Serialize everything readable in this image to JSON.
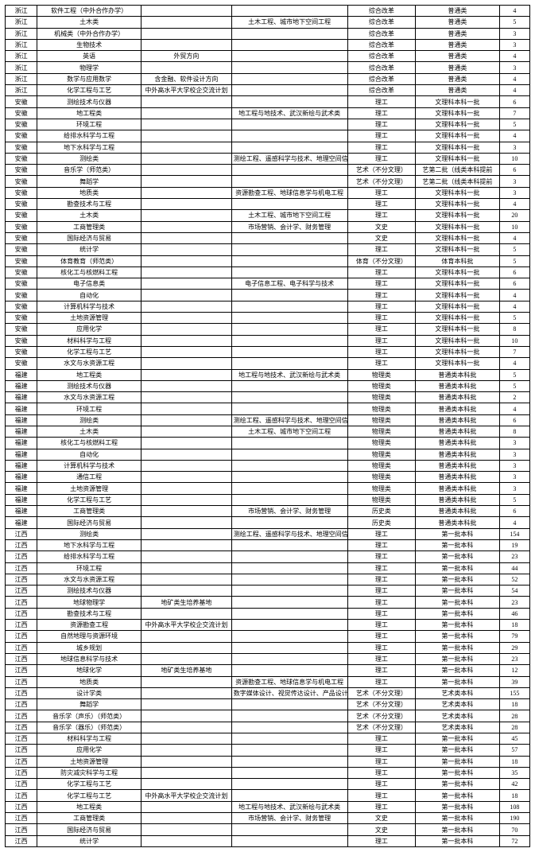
{
  "table": {
    "colClasses": [
      "c0",
      "c1",
      "c2",
      "c3",
      "c4",
      "c5",
      "c6"
    ],
    "rows": [
      [
        "浙江",
        "软件工程（中外合作办学）",
        "",
        "",
        "综合改革",
        "普通类",
        "4"
      ],
      [
        "浙江",
        "土木类",
        "",
        "土木工程、城市地下空间工程",
        "综合改革",
        "普通类",
        "5"
      ],
      [
        "浙江",
        "机械类（中外合作办学）",
        "",
        "",
        "综合改革",
        "普通类",
        "3"
      ],
      [
        "浙江",
        "生物技术",
        "",
        "",
        "综合改革",
        "普通类",
        "3"
      ],
      [
        "浙江",
        "英语",
        "外贸方向",
        "",
        "综合改革",
        "普通类",
        "4"
      ],
      [
        "浙江",
        "物理学",
        "",
        "",
        "综合改革",
        "普通类",
        "3"
      ],
      [
        "浙江",
        "数学与应用数学",
        "含金融、软件设计方向",
        "",
        "综合改革",
        "普通类",
        "4"
      ],
      [
        "浙江",
        "化学工程与工艺",
        "中外高水平大学校企交流计划",
        "",
        "综合改革",
        "普通类",
        "4"
      ],
      [
        "安徽",
        "测绘技术与仪器",
        "",
        "",
        "理工",
        "文理科本科一批",
        "6"
      ],
      [
        "安徽",
        "地工程类",
        "",
        "地工程与地技术、武汉新绘与武术类",
        "理工",
        "文理科本科一批",
        "7"
      ],
      [
        "安徽",
        "环境工程",
        "",
        "",
        "理工",
        "文理科本科一批",
        "5"
      ],
      [
        "安徽",
        "给排水科学与工程",
        "",
        "",
        "理工",
        "文理科本科一批",
        "4"
      ],
      [
        "安徽",
        "地下水科学与工程",
        "",
        "",
        "理工",
        "文理科本科一批",
        "3"
      ],
      [
        "安徽",
        "测绘类",
        "",
        "测绘工程、遥感科学与技术、地理空间信息工程",
        "理工",
        "文理科本科一批",
        "10"
      ],
      [
        "安徽",
        "音乐学（师范类）",
        "",
        "",
        "艺术（不分文理）",
        "艺第二批（线类本科提前",
        "6"
      ],
      [
        "安徽",
        "舞蹈学",
        "",
        "",
        "艺术（不分文理）",
        "艺第二批（线类本科提前",
        "3"
      ],
      [
        "安徽",
        "地质类",
        "",
        "资源勘查工程、地球信息学与机电工程",
        "理工",
        "文理科本科一批",
        "3"
      ],
      [
        "安徽",
        "勘查技术与工程",
        "",
        "",
        "理工",
        "文理科本科一批",
        "4"
      ],
      [
        "安徽",
        "土木类",
        "",
        "土木工程、城市地下空间工程",
        "理工",
        "文理科本科一批",
        "20"
      ],
      [
        "安徽",
        "工商管理类",
        "",
        "市场营销、会计学、财务管理",
        "文史",
        "文理科本科一批",
        "10"
      ],
      [
        "安徽",
        "国际经济与贸易",
        "",
        "",
        "文史",
        "文理科本科一批",
        "4"
      ],
      [
        "安徽",
        "统计学",
        "",
        "",
        "理工",
        "文理科本科一批",
        "5"
      ],
      [
        "安徽",
        "体育教育（师范类）",
        "",
        "",
        "体育（不分文理）",
        "体育本科批",
        "5"
      ],
      [
        "安徽",
        "核化工与核燃料工程",
        "",
        "",
        "理工",
        "文理科本科一批",
        "6"
      ],
      [
        "安徽",
        "电子信息类",
        "",
        "电子信息工程、电子科学与技术",
        "理工",
        "文理科本科一批",
        "6"
      ],
      [
        "安徽",
        "自动化",
        "",
        "",
        "理工",
        "文理科本科一批",
        "4"
      ],
      [
        "安徽",
        "计算机科学与技术",
        "",
        "",
        "理工",
        "文理科本科一批",
        "4"
      ],
      [
        "安徽",
        "土地资源管理",
        "",
        "",
        "理工",
        "文理科本科一批",
        "5"
      ],
      [
        "安徽",
        "应用化学",
        "",
        "",
        "理工",
        "文理科本科一批",
        "8"
      ],
      [
        "安徽",
        "材料科学与工程",
        "",
        "",
        "理工",
        "文理科本科一批",
        "10"
      ],
      [
        "安徽",
        "化学工程与工艺",
        "",
        "",
        "理工",
        "文理科本科一批",
        "7"
      ],
      [
        "安徽",
        "水文与水资源工程",
        "",
        "",
        "理工",
        "文理科本科一批",
        "4"
      ],
      [
        "福建",
        "地工程类",
        "",
        "地工程与地技术、武汉新绘与武术类",
        "物理类",
        "普通类本科批",
        "5"
      ],
      [
        "福建",
        "测绘技术与仪器",
        "",
        "",
        "物理类",
        "普通类本科批",
        "5"
      ],
      [
        "福建",
        "水文与水资源工程",
        "",
        "",
        "物理类",
        "普通类本科批",
        "2"
      ],
      [
        "福建",
        "环境工程",
        "",
        "",
        "物理类",
        "普通类本科批",
        "4"
      ],
      [
        "福建",
        "测绘类",
        "",
        "测绘工程、遥感科学与技术、地理空间信息工程",
        "物理类",
        "普通类本科批",
        "6"
      ],
      [
        "福建",
        "土木类",
        "",
        "土木工程、城市地下空间工程",
        "物理类",
        "普通类本科批",
        "8"
      ],
      [
        "福建",
        "核化工与核燃料工程",
        "",
        "",
        "物理类",
        "普通类本科批",
        "3"
      ],
      [
        "福建",
        "自动化",
        "",
        "",
        "物理类",
        "普通类本科批",
        "3"
      ],
      [
        "福建",
        "计算机科学与技术",
        "",
        "",
        "物理类",
        "普通类本科批",
        "3"
      ],
      [
        "福建",
        "通信工程",
        "",
        "",
        "物理类",
        "普通类本科批",
        "3"
      ],
      [
        "福建",
        "土地资源管理",
        "",
        "",
        "物理类",
        "普通类本科批",
        "3"
      ],
      [
        "福建",
        "化学工程与工艺",
        "",
        "",
        "物理类",
        "普通类本科批",
        "5"
      ],
      [
        "福建",
        "工商管理类",
        "",
        "市场营销、会计学、财务管理",
        "历史类",
        "普通类本科批",
        "6"
      ],
      [
        "福建",
        "国际经济与贸易",
        "",
        "",
        "历史类",
        "普通类本科批",
        "4"
      ],
      [
        "江西",
        "测绘类",
        "",
        "测绘工程、遥感科学与技术、地理空间信息工程",
        "理工",
        "第一批本科",
        "154"
      ],
      [
        "江西",
        "地下水科学与工程",
        "",
        "",
        "理工",
        "第一批本科",
        "19"
      ],
      [
        "江西",
        "给排水科学与工程",
        "",
        "",
        "理工",
        "第一批本科",
        "23"
      ],
      [
        "江西",
        "环境工程",
        "",
        "",
        "理工",
        "第一批本科",
        "44"
      ],
      [
        "江西",
        "水文与水资源工程",
        "",
        "",
        "理工",
        "第一批本科",
        "52"
      ],
      [
        "江西",
        "测绘技术与仪器",
        "",
        "",
        "理工",
        "第一批本科",
        "54"
      ],
      [
        "江西",
        "地球物理学",
        "地矿类生培养基地",
        "",
        "理工",
        "第一批本科",
        "23"
      ],
      [
        "江西",
        "勘查技术与工程",
        "",
        "",
        "理工",
        "第一批本科",
        "46"
      ],
      [
        "江西",
        "资源勘查工程",
        "中外高水平大学校企交流计划",
        "",
        "理工",
        "第一批本科",
        "18"
      ],
      [
        "江西",
        "自然地理与资源环境",
        "",
        "",
        "理工",
        "第一批本科",
        "79"
      ],
      [
        "江西",
        "城乡规划",
        "",
        "",
        "理工",
        "第一批本科",
        "29"
      ],
      [
        "江西",
        "地球信息科学与技术",
        "",
        "",
        "理工",
        "第一批本科",
        "23"
      ],
      [
        "江西",
        "地球化学",
        "地矿类生培养基地",
        "",
        "理工",
        "第一批本科",
        "12"
      ],
      [
        "江西",
        "地质类",
        "",
        "资源勘查工程、地球信息学与机电工程",
        "理工",
        "第一批本科",
        "39"
      ],
      [
        "江西",
        "设计学类",
        "",
        "数字媒体设计、视觉传达设计、产品设计",
        "艺术（不分文理）",
        "艺术类本科",
        "155"
      ],
      [
        "江西",
        "舞蹈学",
        "",
        "",
        "艺术（不分文理）",
        "艺术类本科",
        "18"
      ],
      [
        "江西",
        "音乐学（声乐）（师范类）",
        "",
        "",
        "艺术（不分文理）",
        "艺术类本科",
        "28"
      ],
      [
        "江西",
        "音乐学（器乐）（师范类）",
        "",
        "",
        "艺术（不分文理）",
        "艺术类本科",
        "28"
      ],
      [
        "江西",
        "材料科学与工程",
        "",
        "",
        "理工",
        "第一批本科",
        "45"
      ],
      [
        "江西",
        "应用化学",
        "",
        "",
        "理工",
        "第一批本科",
        "57"
      ],
      [
        "江西",
        "土地资源管理",
        "",
        "",
        "理工",
        "第一批本科",
        "18"
      ],
      [
        "江西",
        "防灾减灾科学与工程",
        "",
        "",
        "理工",
        "第一批本科",
        "35"
      ],
      [
        "江西",
        "化学工程与工艺",
        "",
        "",
        "理工",
        "第一批本科",
        "42"
      ],
      [
        "江西",
        "化学工程与工艺",
        "中外高水平大学校企交流计划",
        "",
        "理工",
        "第一批本科",
        "18"
      ],
      [
        "江西",
        "地工程类",
        "",
        "地工程与地技术、武汉新绘与武术类",
        "理工",
        "第一批本科",
        "108"
      ],
      [
        "江西",
        "工商管理类",
        "",
        "市场营销、会计学、财务管理",
        "文史",
        "第一批本科",
        "190"
      ],
      [
        "江西",
        "国际经济与贸易",
        "",
        "",
        "文史",
        "第一批本科",
        "70"
      ],
      [
        "江西",
        "统计学",
        "",
        "",
        "理工",
        "第一批本科",
        "72"
      ]
    ]
  }
}
